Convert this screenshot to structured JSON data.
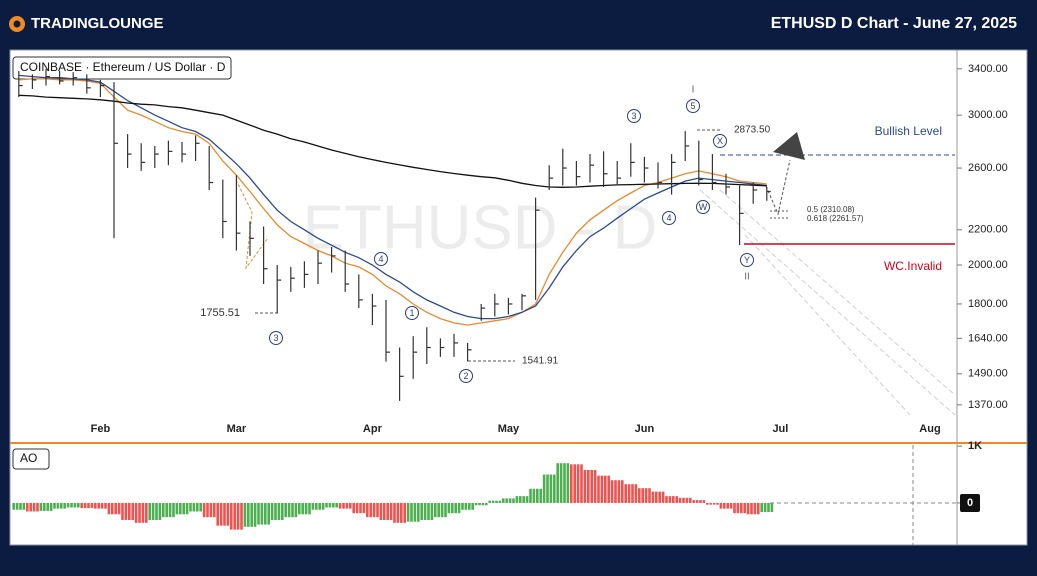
{
  "header": {
    "logo": "TRADINGLOUNGE",
    "title": "ETHUSD D Chart - June 27, 2025"
  },
  "chart_data": [
    {
      "type": "ohlc",
      "title": "COINBASE · Ethereum / US Dollar · D",
      "watermark": "ETHUSD - D",
      "categories": [
        null,
        null,
        null,
        null,
        null,
        null,
        "Feb",
        null,
        null,
        null,
        null,
        null,
        null,
        null,
        null,
        null,
        "Mar",
        null,
        null,
        null,
        null,
        null,
        null,
        null,
        null,
        null,
        "Apr",
        null,
        null,
        null,
        null,
        null,
        null,
        null,
        null,
        null,
        "May",
        null,
        null,
        null,
        null,
        null,
        null,
        null,
        null,
        null,
        "Jun",
        null,
        null,
        null,
        null,
        null,
        null,
        null,
        null,
        null,
        "Jul",
        null,
        null,
        null,
        null,
        null,
        null,
        null,
        null,
        null,
        null,
        "Aug",
        null
      ],
      "high": [
        3380,
        3350,
        3400,
        3380,
        3370,
        3350,
        3300,
        3280,
        2850,
        2780,
        2760,
        2800,
        2790,
        2840,
        2760,
        2520,
        2550,
        2250,
        2220,
        2000,
        1990,
        2020,
        2080,
        2100,
        2080,
        1950,
        1850,
        1820,
        1600,
        1650,
        1690,
        1640,
        1660,
        1620,
        1800,
        1850,
        1830,
        1850,
        2400,
        2620,
        2740,
        2650,
        2700,
        2720,
        2650,
        2780,
        2680,
        2640,
        2700,
        2873,
        2800,
        2700,
        2560,
        2480,
        2500,
        2470,
        null,
        null,
        null,
        null,
        null,
        null,
        null,
        null,
        null,
        null,
        null,
        null,
        null
      ],
      "low": [
        3150,
        3220,
        3250,
        3260,
        3250,
        3180,
        3150,
        2150,
        2600,
        2580,
        2600,
        2620,
        2640,
        2650,
        2450,
        2150,
        2080,
        2050,
        1900,
        1755,
        1860,
        1880,
        1900,
        1960,
        1860,
        1780,
        1700,
        1540,
        1385,
        1470,
        1530,
        1560,
        1560,
        1541,
        1720,
        1740,
        1750,
        1770,
        1820,
        2450,
        2480,
        2480,
        2500,
        2470,
        2480,
        2540,
        2500,
        2460,
        2420,
        2650,
        2480,
        2450,
        2420,
        2111,
        2360,
        2380,
        null,
        null,
        null,
        null,
        null,
        null,
        null,
        null,
        null,
        null,
        null,
        null,
        null
      ],
      "close": [
        3250,
        3300,
        3330,
        3290,
        3320,
        3230,
        3250,
        2780,
        2700,
        2640,
        2700,
        2720,
        2700,
        2780,
        2500,
        2250,
        2180,
        2150,
        1980,
        1920,
        1930,
        1950,
        2010,
        2050,
        1900,
        1820,
        1790,
        1580,
        1480,
        1580,
        1600,
        1600,
        1620,
        1590,
        1780,
        1800,
        1800,
        1840,
        2320,
        2530,
        2600,
        2540,
        2620,
        2560,
        2530,
        2640,
        2600,
        2500,
        2640,
        2760,
        2520,
        2500,
        2470,
        2300,
        2450,
        2440,
        null,
        null,
        null,
        null,
        null,
        null,
        null,
        null,
        null,
        null,
        null,
        null,
        null
      ],
      "color": "#333333",
      "lines": [
        {
          "color": "#e8892d",
          "values": [
            3300,
            3310,
            3310,
            3300,
            3300,
            3290,
            3270,
            3150,
            3040,
            3000,
            2950,
            2900,
            2870,
            2850,
            2780,
            2650,
            2550,
            2440,
            2330,
            2230,
            2160,
            2120,
            2080,
            2050,
            2010,
            1990,
            1950,
            1890,
            1850,
            1800,
            1760,
            1730,
            1710,
            1700,
            1710,
            1720,
            1730,
            1760,
            1800,
            1950,
            2070,
            2180,
            2260,
            2320,
            2380,
            2430,
            2480,
            2500,
            2530,
            2560,
            2580,
            2560,
            2540,
            2510,
            2500,
            2490,
            null,
            null,
            null,
            null,
            null,
            null,
            null,
            null,
            null,
            null,
            null,
            null,
            null
          ]
        },
        {
          "color": "#2c4a8c",
          "values": [
            3340,
            3330,
            3320,
            3320,
            3310,
            3300,
            3280,
            3200,
            3120,
            3060,
            3000,
            2950,
            2900,
            2870,
            2810,
            2720,
            2630,
            2530,
            2420,
            2320,
            2250,
            2200,
            2150,
            2110,
            2070,
            2040,
            2000,
            1950,
            1910,
            1860,
            1820,
            1790,
            1760,
            1740,
            1730,
            1730,
            1740,
            1760,
            1790,
            1880,
            1990,
            2080,
            2160,
            2210,
            2270,
            2330,
            2390,
            2430,
            2470,
            2510,
            2530,
            2520,
            2510,
            2500,
            2490,
            2480,
            null,
            null,
            null,
            null,
            null,
            null,
            null,
            null,
            null,
            null,
            null,
            null,
            null
          ]
        },
        {
          "color": "#111111",
          "values": [
            3165,
            3160,
            3150,
            3145,
            3140,
            3135,
            3127,
            3115,
            3100,
            3090,
            3084,
            3070,
            3060,
            3040,
            3020,
            3000,
            2960,
            2920,
            2880,
            2850,
            2815,
            2790,
            2760,
            2730,
            2705,
            2680,
            2660,
            2640,
            2622,
            2605,
            2590,
            2575,
            2562,
            2550,
            2540,
            2532,
            2515,
            2495,
            2480,
            2470,
            2468,
            2470,
            2475,
            2480,
            2484,
            2486,
            2488,
            2490,
            2492,
            2494,
            2495,
            2494,
            2490,
            2486,
            2482,
            2478,
            null,
            null,
            null,
            null,
            null,
            null,
            null,
            null,
            null,
            null,
            null,
            null,
            null
          ]
        }
      ],
      "ylim": [
        1333,
        3578
      ],
      "log_scale": true,
      "yticks": [
        {
          "value": 3400,
          "label": "3400.00"
        },
        {
          "value": 3000,
          "label": "3000.00"
        },
        {
          "value": 2600,
          "label": "2600.00"
        },
        {
          "value": 2200,
          "label": "2200.00"
        },
        {
          "value": 2000,
          "label": "2000.00"
        },
        {
          "value": 1800,
          "label": "1800.00"
        },
        {
          "value": 1640,
          "label": "1640.00"
        },
        {
          "value": 1490,
          "label": "1490.00"
        },
        {
          "value": 1370,
          "label": "1370.00"
        }
      ],
      "wave_labels": [
        "3",
        "5",
        "X",
        "4",
        "W",
        "Y",
        "4",
        "1",
        "2",
        "3"
      ],
      "degree_labels": [
        "I",
        "II"
      ],
      "price_labels": [
        "2873.50",
        "1755.51",
        "1541.91",
        "0.5 (2310.08)",
        "0.618 (2261.57)"
      ],
      "level_labels": [
        "Bullish Level",
        "WC.Invalid"
      ]
    },
    {
      "type": "bar",
      "title": "AO",
      "values": [
        -120,
        -150,
        -140,
        -100,
        -80,
        -90,
        -100,
        -200,
        -300,
        -350,
        -300,
        -250,
        -200,
        -150,
        -250,
        -400,
        -470,
        -420,
        -380,
        -300,
        -250,
        -200,
        -120,
        -80,
        -100,
        -180,
        -250,
        -300,
        -350,
        -330,
        -300,
        -250,
        -180,
        -120,
        -40,
        40,
        80,
        120,
        250,
        500,
        700,
        680,
        580,
        480,
        400,
        330,
        260,
        200,
        120,
        90,
        50,
        -30,
        -100,
        -180,
        -200,
        -160,
        null,
        null,
        null,
        null,
        null,
        null,
        null,
        null,
        null,
        null,
        null,
        null,
        null
      ],
      "up_color": "#4caf50",
      "down_color": "#ef5350",
      "ylim": [
        -740,
        1020
      ],
      "yticks": [
        {
          "value": 1000,
          "label": "1K"
        },
        0
      ]
    }
  ]
}
